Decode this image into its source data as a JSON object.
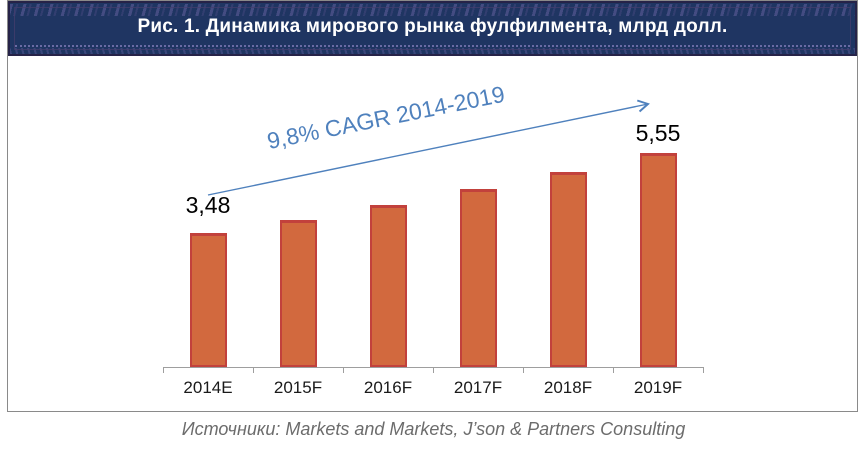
{
  "figure": {
    "title": "Рис. 1. Динамика мирового рынка фулфилмента, млрд долл."
  },
  "annotations": {
    "cagr": "9,8% CAGR 2014-2019",
    "first_bar_value": "3,48",
    "last_bar_value": "5,55"
  },
  "footer": {
    "sources": "Источники: Markets and Markets, J’son & Partners Consulting"
  },
  "colors": {
    "banner_background": "#1f3562",
    "banner_edge": "#262348",
    "title_text": "#ffffff",
    "bar_fill": "#d2693e",
    "bar_border": "#c2413c",
    "annotation_blue": "#4f81bd",
    "axis_gray": "#9e9e9e",
    "frame_border": "#8a8a8a",
    "source_text": "#6c6c6c",
    "value_text": "#000000"
  },
  "chart_data": {
    "type": "bar",
    "title": "Рис. 1. Динамика мирового рынка фулфилмента, млрд долл.",
    "unit": "млрд долл.",
    "categories": [
      "2014E",
      "2015F",
      "2016F",
      "2017F",
      "2018F",
      "2019F"
    ],
    "values": [
      3.48,
      3.82,
      4.2,
      4.61,
      5.06,
      5.55
    ],
    "value_labels_shown": {
      "2014E": "3,48",
      "2019F": "5,55"
    },
    "annotation": "9,8% CAGR 2014-2019",
    "xlabel": "",
    "ylabel": "",
    "ylim": [
      0,
      6
    ],
    "grid": false,
    "legend": false
  }
}
